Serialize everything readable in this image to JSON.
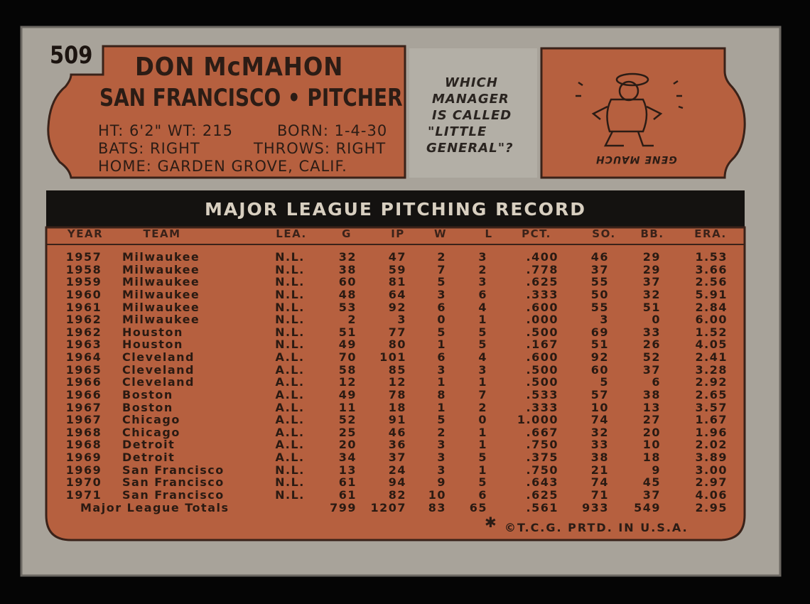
{
  "card_number": "509",
  "header": {
    "name": "DON McMAHON",
    "team_position": "SAN FRANCISCO • PITCHER",
    "height_weight": "HT: 6'2\" WT: 215",
    "born": "BORN: 1-4-30",
    "bats": "BATS: RIGHT",
    "throws": "THROWS: RIGHT",
    "home": "HOME: GARDEN GROVE, CALIF."
  },
  "quiz": {
    "question_lines": [
      "WHICH",
      "MANAGER",
      "IS CALLED",
      "\"LITTLE",
      "GENERAL\"?"
    ],
    "answer": "GENE MAUCH"
  },
  "table": {
    "title": "MAJOR LEAGUE PITCHING RECORD",
    "columns": [
      "YEAR",
      "TEAM",
      "LEA.",
      "G",
      "IP",
      "W",
      "L",
      "PCT.",
      "SO.",
      "BB.",
      "ERA."
    ],
    "rows": [
      [
        "1957",
        "Milwaukee",
        "N.L.",
        "32",
        "47",
        "2",
        "3",
        ".400",
        "46",
        "29",
        "1.53"
      ],
      [
        "1958",
        "Milwaukee",
        "N.L.",
        "38",
        "59",
        "7",
        "2",
        ".778",
        "37",
        "29",
        "3.66"
      ],
      [
        "1959",
        "Milwaukee",
        "N.L.",
        "60",
        "81",
        "5",
        "3",
        ".625",
        "55",
        "37",
        "2.56"
      ],
      [
        "1960",
        "Milwaukee",
        "N.L.",
        "48",
        "64",
        "3",
        "6",
        ".333",
        "50",
        "32",
        "5.91"
      ],
      [
        "1961",
        "Milwaukee",
        "N.L.",
        "53",
        "92",
        "6",
        "4",
        ".600",
        "55",
        "51",
        "2.84"
      ],
      [
        "1962",
        "Milwaukee",
        "N.L.",
        "2",
        "3",
        "0",
        "1",
        ".000",
        "3",
        "0",
        "6.00"
      ],
      [
        "1962",
        "Houston",
        "N.L.",
        "51",
        "77",
        "5",
        "5",
        ".500",
        "69",
        "33",
        "1.52"
      ],
      [
        "1963",
        "Houston",
        "N.L.",
        "49",
        "80",
        "1",
        "5",
        ".167",
        "51",
        "26",
        "4.05"
      ],
      [
        "1964",
        "Cleveland",
        "A.L.",
        "70",
        "101",
        "6",
        "4",
        ".600",
        "92",
        "52",
        "2.41"
      ],
      [
        "1965",
        "Cleveland",
        "A.L.",
        "58",
        "85",
        "3",
        "3",
        ".500",
        "60",
        "37",
        "3.28"
      ],
      [
        "1966",
        "Cleveland",
        "A.L.",
        "12",
        "12",
        "1",
        "1",
        ".500",
        "5",
        "6",
        "2.92"
      ],
      [
        "1966",
        "Boston",
        "A.L.",
        "49",
        "78",
        "8",
        "7",
        ".533",
        "57",
        "38",
        "2.65"
      ],
      [
        "1967",
        "Boston",
        "A.L.",
        "11",
        "18",
        "1",
        "2",
        ".333",
        "10",
        "13",
        "3.57"
      ],
      [
        "1967",
        "Chicago",
        "A.L.",
        "52",
        "91",
        "5",
        "0",
        "1.000",
        "74",
        "27",
        "1.67"
      ],
      [
        "1968",
        "Chicago",
        "A.L.",
        "25",
        "46",
        "2",
        "1",
        ".667",
        "32",
        "20",
        "1.96"
      ],
      [
        "1968",
        "Detroit",
        "A.L.",
        "20",
        "36",
        "3",
        "1",
        ".750",
        "33",
        "10",
        "2.02"
      ],
      [
        "1969",
        "Detroit",
        "A.L.",
        "34",
        "37",
        "3",
        "5",
        ".375",
        "38",
        "18",
        "3.89"
      ],
      [
        "1969",
        "San Francisco",
        "N.L.",
        "13",
        "24",
        "3",
        "1",
        ".750",
        "21",
        "9",
        "3.00"
      ],
      [
        "1970",
        "San Francisco",
        "N.L.",
        "61",
        "94",
        "9",
        "5",
        ".643",
        "74",
        "45",
        "2.97"
      ],
      [
        "1971",
        "San Francisco",
        "N.L.",
        "61",
        "82",
        "10",
        "6",
        ".625",
        "71",
        "37",
        "4.06"
      ]
    ],
    "totals": {
      "label": "Major League Totals",
      "values": [
        "799",
        "1207",
        "83",
        "65",
        ".561",
        "933",
        "549",
        "2.95"
      ]
    }
  },
  "footer": "©T.C.G. PRTD. IN U.S.A."
}
